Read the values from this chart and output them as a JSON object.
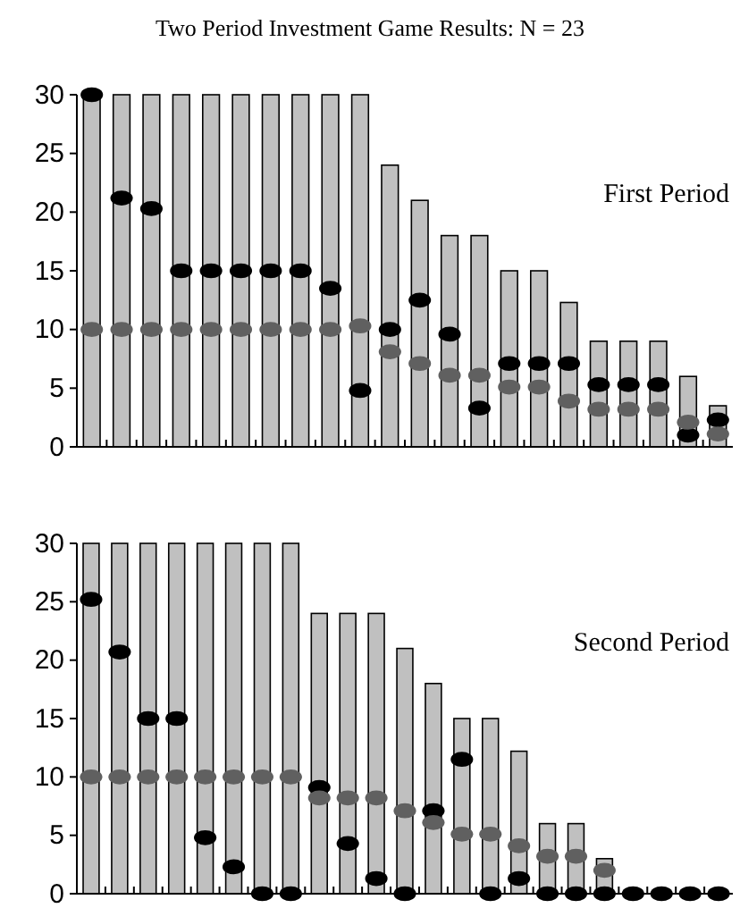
{
  "chart_data": [
    {
      "type": "bar",
      "title": "Two Period Investment Game Results:  N = 23",
      "annotations": [
        "First Period"
      ],
      "categories": [
        null,
        null,
        null,
        null,
        null,
        null,
        null,
        null,
        null,
        null,
        null,
        null,
        null,
        null,
        null,
        null,
        null,
        null,
        null,
        null,
        null,
        null
      ],
      "series": [
        {
          "type": "bar",
          "color": "#c0c0c0",
          "values": [
            30,
            30,
            30,
            30,
            30,
            30,
            30,
            30,
            30,
            30,
            24,
            21,
            18,
            18,
            15,
            15,
            12.3,
            9,
            9,
            9,
            6,
            3.5
          ]
        },
        {
          "type": "scatter",
          "color": "#000000",
          "values": [
            30,
            21.2,
            20.3,
            15,
            15,
            15,
            15,
            15,
            13.5,
            4.8,
            10,
            12.5,
            9.6,
            3.3,
            7.1,
            7.1,
            7.1,
            5.3,
            5.3,
            5.3,
            1,
            2.3
          ]
        },
        {
          "type": "scatter",
          "color": "#606060",
          "values": [
            10,
            10,
            10,
            10,
            10,
            10,
            10,
            10,
            10,
            10.3,
            8.1,
            7.1,
            6.1,
            6.1,
            5.1,
            5.1,
            3.9,
            3.2,
            3.2,
            3.2,
            2.1,
            1.1
          ]
        }
      ],
      "ylim": [
        0,
        30
      ],
      "yticks": [
        0,
        5,
        10,
        15,
        20,
        25,
        30
      ],
      "grid": false,
      "marker": "circle",
      "tick_labels": "y"
    },
    {
      "type": "bar",
      "annotations": [
        "Second Period"
      ],
      "categories": [
        null,
        null,
        null,
        null,
        null,
        null,
        null,
        null,
        null,
        null,
        null,
        null,
        null,
        null,
        null,
        null,
        null,
        null,
        null,
        null,
        null,
        null,
        null
      ],
      "series": [
        {
          "type": "bar",
          "color": "#c0c0c0",
          "values": [
            30,
            30,
            30,
            30,
            30,
            30,
            30,
            30,
            24,
            24,
            24,
            21,
            18,
            15,
            15,
            12.2,
            6,
            6,
            3,
            null,
            null,
            null,
            null
          ]
        },
        {
          "type": "scatter",
          "color": "#000000",
          "values": [
            25.2,
            20.7,
            15,
            15,
            4.8,
            2.3,
            0,
            0,
            9.1,
            4.3,
            1.3,
            0,
            7.1,
            11.5,
            0,
            1.3,
            0,
            0,
            0,
            0,
            0,
            0,
            0
          ]
        },
        {
          "type": "scatter",
          "color": "#606060",
          "values": [
            10,
            10,
            10,
            10,
            10,
            10,
            10,
            10,
            8.2,
            8.2,
            8.2,
            7.1,
            6.1,
            5.1,
            5.1,
            4.1,
            3.2,
            3.2,
            2,
            null,
            null,
            null,
            null
          ]
        }
      ],
      "ylim": [
        0,
        30
      ],
      "yticks": [
        0,
        5,
        10,
        15,
        20,
        25,
        30
      ],
      "grid": false,
      "marker": "circle",
      "tick_labels": "y"
    }
  ]
}
